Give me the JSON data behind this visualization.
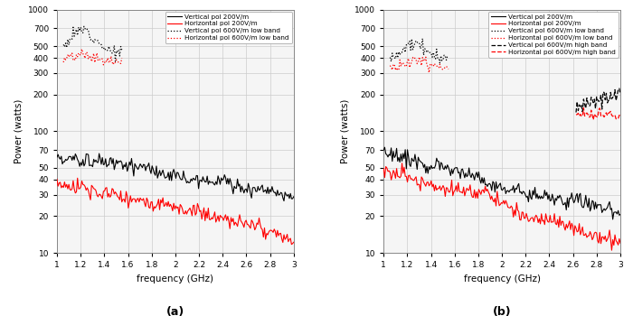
{
  "title_a": "(a)",
  "title_b": "(b)",
  "xlabel": "frequency (GHz)",
  "ylabel": "Power (watts)",
  "xlim": [
    1.0,
    3.0
  ],
  "ylim_log": [
    10,
    1000
  ],
  "yticks": [
    10,
    20,
    30,
    40,
    50,
    70,
    100,
    200,
    300,
    400,
    500,
    700,
    1000
  ],
  "xticks": [
    1.0,
    1.2,
    1.4,
    1.6,
    1.8,
    2.0,
    2.2,
    2.4,
    2.6,
    2.8,
    3.0
  ],
  "legend_a": [
    {
      "label": "Vertical pol 200V/m",
      "color": "black",
      "ls": "-",
      "lw": 1.0
    },
    {
      "label": "Horizontal pol 200V/m",
      "color": "red",
      "ls": "-",
      "lw": 1.0
    },
    {
      "label": "Vertical pol 600V/m low band",
      "color": "black",
      "ls": ":",
      "lw": 1.2
    },
    {
      "label": "Horizontal pol 600V/m low band",
      "color": "red",
      "ls": ":",
      "lw": 1.2
    }
  ],
  "legend_b": [
    {
      "label": "Vertical pol 200V/m",
      "color": "black",
      "ls": "-",
      "lw": 1.0
    },
    {
      "label": "Horizontal pol 200V/m",
      "color": "red",
      "ls": "-",
      "lw": 1.0
    },
    {
      "label": "Vertical pol 600V/m low band",
      "color": "black",
      "ls": ":",
      "lw": 1.2
    },
    {
      "label": "Horizontal pol 600V/m low band",
      "color": "red",
      "ls": ":",
      "lw": 1.2
    },
    {
      "label": "Vertical pol 600V/m high band",
      "color": "black",
      "ls": "--",
      "lw": 1.2
    },
    {
      "label": "Horizontal pol 600V/m high band",
      "color": "red",
      "ls": "--",
      "lw": 1.2
    }
  ],
  "bg_color": "#f5f5f5",
  "grid_color": "#cccccc"
}
